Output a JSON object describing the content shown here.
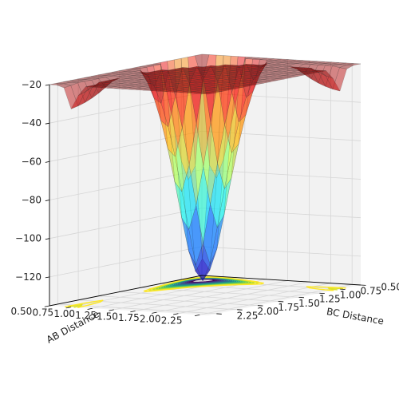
{
  "chart_data": {
    "type": "surface",
    "subtype": "3d-surface-with-contour-projection",
    "xlabel": "AB Distance",
    "ylabel": "BC Distance",
    "zlabel": "",
    "title": "",
    "x_ticks": [
      0.5,
      0.75,
      1.0,
      1.25,
      1.5,
      1.75,
      2.0,
      2.25
    ],
    "x_tick_labels": [
      "0.50",
      "0.75",
      "1.00",
      "1.25",
      "1.50",
      "1.75",
      "2.00",
      "2.25"
    ],
    "y_ticks": [
      0.5,
      0.75,
      1.0,
      1.25,
      1.5,
      1.75,
      2.0,
      2.25
    ],
    "y_tick_labels": [
      "0.50",
      "0.75",
      "1.00",
      "1.25",
      "1.50",
      "1.75",
      "2.00",
      "2.25"
    ],
    "z_ticks": [
      -120,
      -100,
      -80,
      -60,
      -40,
      -20
    ],
    "z_tick_labels": [
      "−120",
      "−100",
      "−80",
      "−60",
      "−40",
      "−20"
    ],
    "xlim": [
      0.5,
      2.35
    ],
    "ylim": [
      0.5,
      2.35
    ],
    "zlim": [
      -135,
      -20
    ],
    "colormap_surface": "jet",
    "colormap_contour": "viridis",
    "surface_alpha": 0.45,
    "grid": true,
    "pane_color": "#f2f2f2",
    "view": {
      "elevation_deg": 18,
      "azimuth_deg": 40
    }
  }
}
